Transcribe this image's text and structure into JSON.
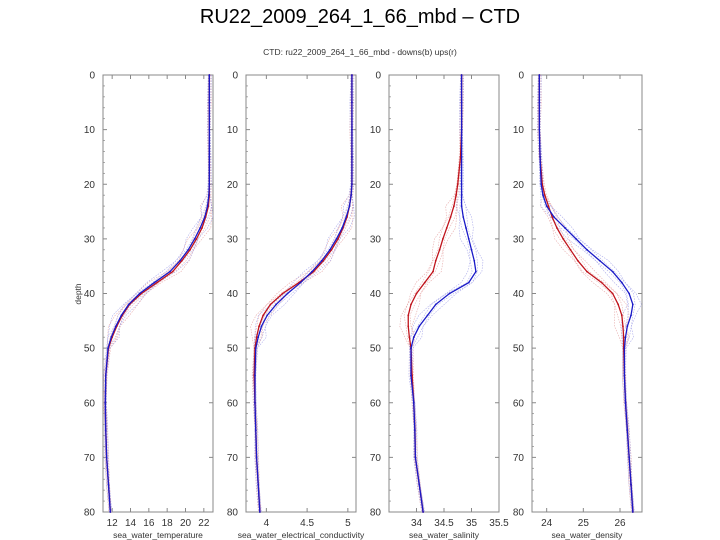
{
  "page": {
    "title": "RU22_2009_264_1_66_mbd – CTD"
  },
  "colors": {
    "down": "#c0141c",
    "up": "#1a1ac8",
    "down_light": "#e39c9c",
    "up_light": "#9c9ce6",
    "frame": "#888888"
  },
  "chart_data": {
    "type": "line",
    "title": "CTD: ru22_2009_264_1_66_mbd - downs(b) ups(r)",
    "ylabel": "depth",
    "ylim": [
      0,
      80
    ],
    "y_ticks": [
      "0",
      "10",
      "20",
      "30",
      "40",
      "50",
      "60",
      "70",
      "80"
    ],
    "depth": [
      0,
      5,
      10,
      15,
      20,
      22,
      24,
      26,
      28,
      30,
      32,
      34,
      36,
      38,
      40,
      42,
      44,
      46,
      48,
      50,
      55,
      60,
      65,
      70,
      75,
      80
    ],
    "panels": [
      {
        "xlabel": "sea_water_temperature",
        "xlim": [
          11,
          23
        ],
        "x_ticks": [
          12,
          14,
          16,
          18,
          20,
          22
        ],
        "x_tick_labels": [
          "12",
          "14",
          "16",
          "18",
          "20",
          "22"
        ],
        "series": [
          {
            "name": "down",
            "values": [
              22.6,
              22.6,
              22.6,
              22.6,
              22.6,
              22.6,
              22.5,
              22.2,
              21.8,
              21.2,
              20.5,
              19.6,
              18.6,
              16.9,
              15.2,
              13.9,
              13.1,
              12.5,
              12.0,
              11.6,
              11.3,
              11.25,
              11.3,
              11.4,
              11.6,
              11.8
            ]
          },
          {
            "name": "up",
            "values": [
              22.6,
              22.6,
              22.6,
              22.6,
              22.6,
              22.55,
              22.4,
              22.1,
              21.6,
              21.0,
              20.3,
              19.4,
              18.3,
              16.6,
              15.0,
              13.8,
              13.0,
              12.4,
              11.9,
              11.55,
              11.3,
              11.25,
              11.3,
              11.4,
              11.6,
              11.8
            ]
          }
        ]
      },
      {
        "xlabel": "sea_water_electrical_conductivity",
        "xlim": [
          3.75,
          5.1
        ],
        "x_ticks": [
          4,
          4.5,
          5
        ],
        "x_tick_labels": [
          "4",
          "4.5",
          "5"
        ],
        "series": [
          {
            "name": "down",
            "values": [
              5.05,
              5.05,
              5.05,
              5.05,
              5.05,
              5.04,
              5.02,
              4.99,
              4.94,
              4.88,
              4.8,
              4.7,
              4.58,
              4.4,
              4.2,
              4.05,
              3.96,
              3.91,
              3.88,
              3.86,
              3.85,
              3.86,
              3.87,
              3.88,
              3.9,
              3.92
            ]
          },
          {
            "name": "up",
            "values": [
              5.05,
              5.05,
              5.05,
              5.05,
              5.05,
              5.04,
              5.02,
              4.98,
              4.93,
              4.86,
              4.78,
              4.68,
              4.56,
              4.42,
              4.26,
              4.12,
              4.01,
              3.94,
              3.9,
              3.87,
              3.86,
              3.86,
              3.87,
              3.88,
              3.9,
              3.92
            ]
          }
        ]
      },
      {
        "xlabel": "sea_water_salinity",
        "xlim": [
          33.5,
          35.5
        ],
        "x_ticks": [
          34,
          34.5,
          35,
          35.5
        ],
        "x_tick_labels": [
          "34",
          "34.5",
          "35",
          "35.5"
        ],
        "series": [
          {
            "name": "down",
            "values": [
              34.82,
              34.82,
              34.82,
              34.8,
              34.75,
              34.72,
              34.68,
              34.62,
              34.55,
              34.48,
              34.42,
              34.35,
              34.3,
              34.15,
              34.0,
              33.9,
              33.85,
              33.85,
              33.87,
              33.9,
              33.92,
              33.95,
              33.97,
              33.98,
              34.05,
              34.12
            ]
          },
          {
            "name": "up",
            "values": [
              34.82,
              34.82,
              34.82,
              34.82,
              34.82,
              34.82,
              34.82,
              34.85,
              34.9,
              34.95,
              35.0,
              35.05,
              35.08,
              34.95,
              34.6,
              34.35,
              34.2,
              34.05,
              33.95,
              33.9,
              33.9,
              33.95,
              33.97,
              33.98,
              34.05,
              34.12
            ]
          }
        ]
      },
      {
        "xlabel": "sea_water_density",
        "xlim": [
          23.6,
          26.6
        ],
        "x_ticks": [
          24,
          25,
          26
        ],
        "x_tick_labels": [
          "24",
          "25",
          "26"
        ],
        "series": [
          {
            "name": "down",
            "values": [
              23.8,
              23.8,
              23.8,
              23.82,
              23.88,
              23.95,
              24.05,
              24.15,
              24.28,
              24.45,
              24.65,
              24.85,
              25.1,
              25.5,
              25.8,
              25.95,
              26.05,
              26.08,
              26.1,
              26.1,
              26.12,
              26.15,
              26.2,
              26.25,
              26.3,
              26.35
            ]
          },
          {
            "name": "up",
            "values": [
              23.8,
              23.8,
              23.8,
              23.82,
              23.85,
              23.9,
              24.0,
              24.2,
              24.5,
              24.8,
              25.1,
              25.45,
              25.8,
              26.05,
              26.25,
              26.35,
              26.3,
              26.2,
              26.15,
              26.12,
              26.12,
              26.15,
              26.2,
              26.25,
              26.3,
              26.35
            ]
          }
        ]
      }
    ]
  }
}
